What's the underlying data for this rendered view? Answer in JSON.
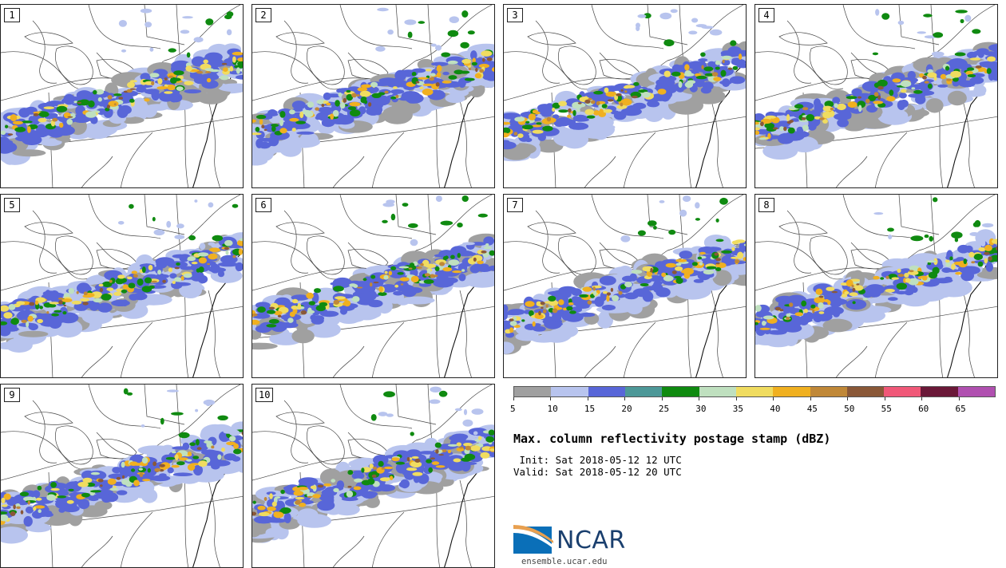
{
  "stamps": [
    {
      "label": "1"
    },
    {
      "label": "2"
    },
    {
      "label": "3"
    },
    {
      "label": "4"
    },
    {
      "label": "5"
    },
    {
      "label": "6"
    },
    {
      "label": "7"
    },
    {
      "label": "8"
    },
    {
      "label": "9"
    },
    {
      "label": "10"
    }
  ],
  "legend": {
    "ticks": [
      "5",
      "10",
      "15",
      "20",
      "25",
      "30",
      "35",
      "40",
      "45",
      "50",
      "55",
      "60",
      "65"
    ],
    "colors": [
      "#a0a0a0",
      "#b8c4ee",
      "#5866d8",
      "#4d9898",
      "#0f8a10",
      "#bfe0bf",
      "#f0dc60",
      "#f0b020",
      "#c08838",
      "#8a5838",
      "#f05878",
      "#6a1838",
      "#b050b0"
    ]
  },
  "title": "Max. column reflectivity postage stamp (dBZ)",
  "init_text": " Init: Sat 2018-05-12 12 UTC",
  "valid_text": "Valid: Sat 2018-05-12 20 UTC",
  "logo_text": "NCAR",
  "site": "ensemble.ucar.edu"
}
